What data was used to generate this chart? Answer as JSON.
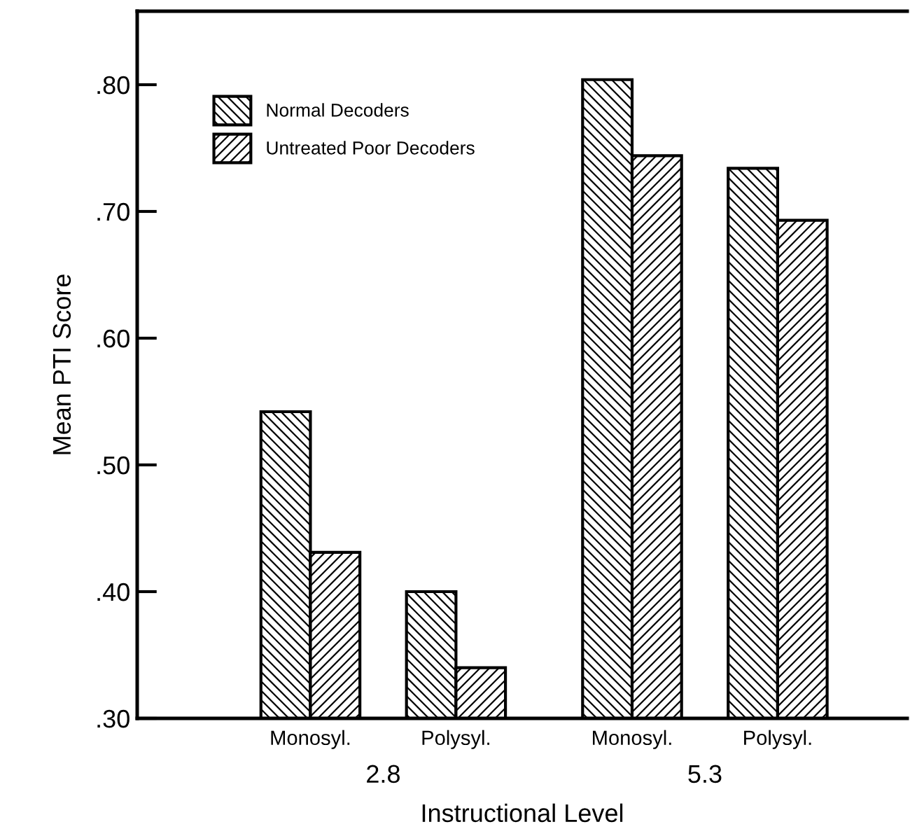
{
  "chart_data": {
    "type": "bar",
    "xlabel": "Instructional Level",
    "ylabel": "Mean PTI Score",
    "categories": [
      "Monosyl.",
      "Polysyl.",
      "Monosyl.",
      "Polysyl."
    ],
    "series": [
      {
        "name": "Normal Decoders",
        "color": "#000000",
        "values": [
          0.542,
          0.4,
          0.804,
          0.734
        ]
      },
      {
        "name": "Untreated Poor Decoders",
        "color": "#000000",
        "values": [
          0.431,
          0.34,
          0.744,
          0.693
        ]
      }
    ],
    "annotations": [
      "2.8",
      "5.3"
    ],
    "ylim": [
      0.3,
      0.858
    ],
    "yticks": [
      {
        "value": 0.3,
        "label": ".30"
      },
      {
        "value": 0.4,
        "label": ".40"
      },
      {
        "value": 0.5,
        "label": ".50"
      },
      {
        "value": 0.6,
        "label": ".60"
      },
      {
        "value": 0.7,
        "label": ".70"
      },
      {
        "value": 0.8,
        "label": ".80"
      }
    ],
    "grid": false,
    "legend": "top left"
  }
}
